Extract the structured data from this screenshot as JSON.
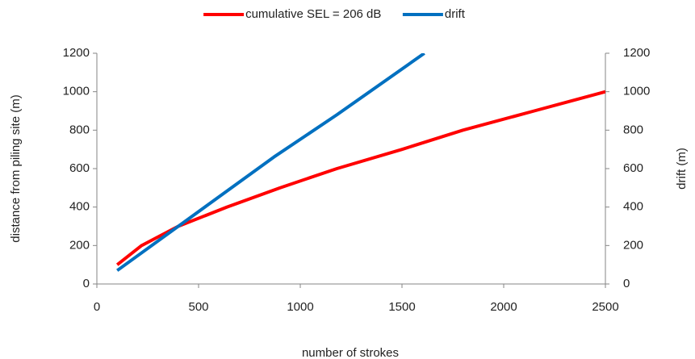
{
  "chart_data": {
    "type": "line",
    "xlabel": "number of strokes",
    "ylabel": "distance from piling site  (m)",
    "y2label": "drift (m)",
    "xlim": [
      0,
      2500
    ],
    "xticks": [
      0,
      500,
      1000,
      1500,
      2000,
      2500
    ],
    "ylim": [
      0,
      1200
    ],
    "yticks": [
      0,
      200,
      400,
      600,
      800,
      1000,
      1200
    ],
    "y2lim": [
      0,
      1200
    ],
    "y2ticks": [
      0,
      200,
      400,
      600,
      800,
      1000,
      1200
    ],
    "legend": "top",
    "series": [
      {
        "name": "cumulative SEL = 206 dB",
        "color": "#ff0000",
        "x": [
          100,
          220,
          400,
          640,
          900,
          1180,
          1500,
          1800,
          2150,
          2500
        ],
        "values": [
          100,
          200,
          300,
          400,
          500,
          600,
          700,
          800,
          900,
          1000
        ]
      },
      {
        "name": "drift",
        "color": "#0070c0",
        "axis": "y2",
        "x": [
          100,
          870,
          1180,
          1610
        ],
        "values": [
          70,
          660,
          880,
          1200
        ]
      }
    ]
  }
}
